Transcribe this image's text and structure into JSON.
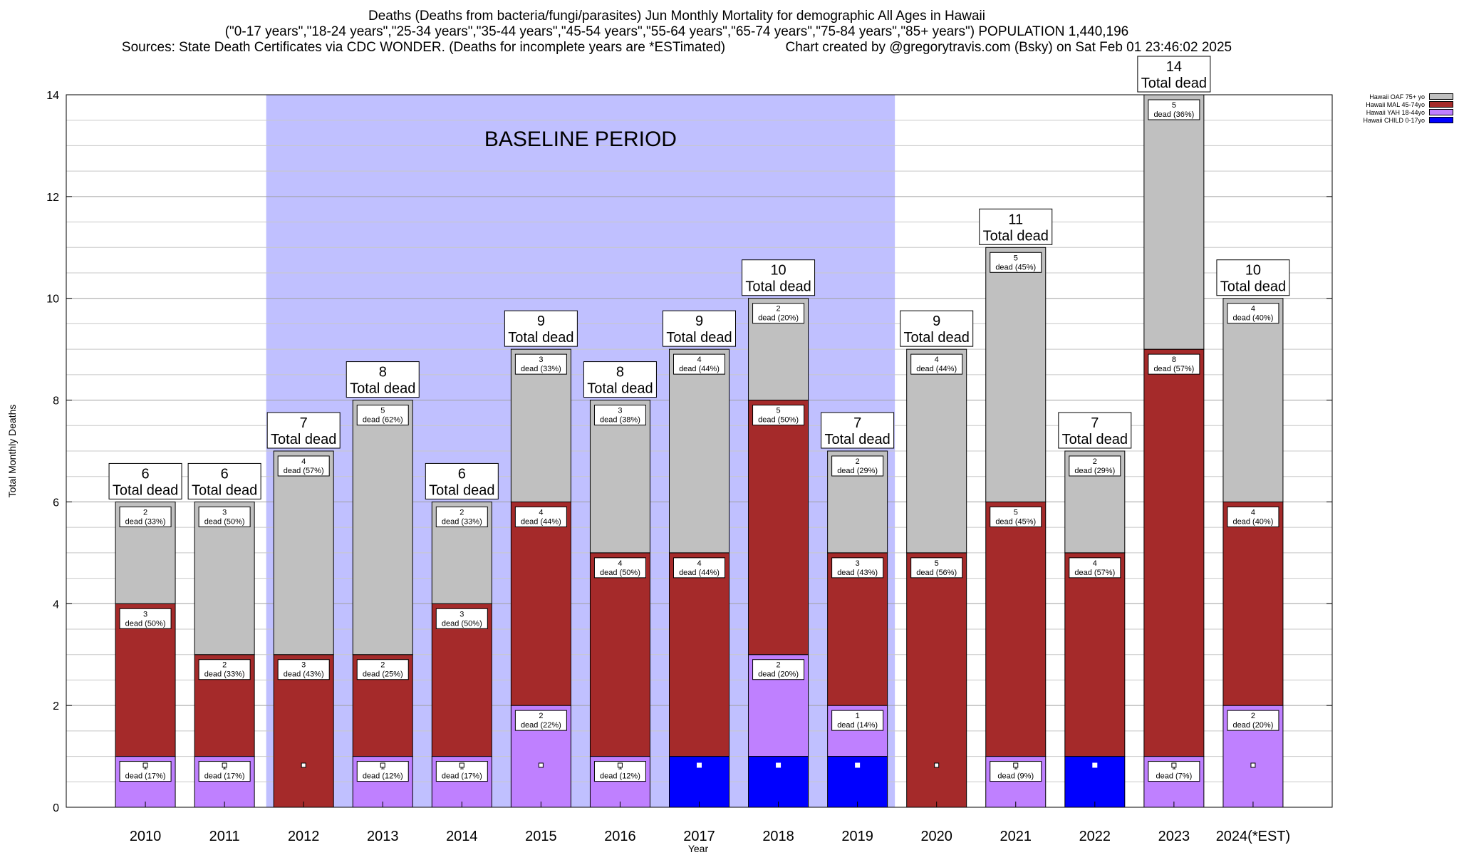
{
  "titles": {
    "line1": "Deaths (Deaths from bacteria/fungi/parasites) Jun Monthly Mortality for demographic All Ages in Hawaii",
    "line2": "(\"0-17 years\",\"18-24 years\",\"25-34 years\",\"35-44 years\",\"45-54 years\",\"55-64 years\",\"65-74 years\",\"75-84 years\",\"85+ years\") POPULATION 1,440,196",
    "line3": "Sources: State Death Certificates via CDC WONDER. (Deaths for incomplete years are *ESTimated)                Chart created by @gregorytravis.com (Bsky) on Sat Feb 01 23:46:02 2025"
  },
  "colors": {
    "child": "#0000ff",
    "yah": "#bf80ff",
    "mal": "#a52a2a",
    "oaf": "#c0c0c0",
    "baseline": "#c0c0ff"
  },
  "chart_data": {
    "type": "bar",
    "stacked": true,
    "categories": [
      "2010",
      "2011",
      "2012",
      "2013",
      "2014",
      "2015",
      "2016",
      "2017",
      "2018",
      "2019",
      "2020",
      "2021",
      "2022",
      "2023",
      "2024(*EST)"
    ],
    "series": [
      {
        "name": "Hawaii CHILD 0-17yo",
        "key": "child",
        "values": [
          0,
          0,
          0,
          0,
          0,
          0,
          0,
          1,
          1,
          1,
          0,
          0,
          1,
          0,
          0
        ],
        "labels": [
          "",
          "",
          "",
          "",
          "",
          "",
          "",
          "",
          "",
          "",
          "",
          "",
          "",
          "",
          ""
        ]
      },
      {
        "name": "Hawaii YAH 18-44yo",
        "key": "yah",
        "values": [
          1,
          1,
          0,
          1,
          1,
          2,
          1,
          0,
          2,
          1,
          0,
          1,
          0,
          1,
          2
        ],
        "labels": [
          "1\ndead (17%)",
          "1\ndead (17%)",
          "",
          "1\ndead (12%)",
          "1\ndead (17%)",
          "2\ndead (22%)",
          "1\ndead (12%)",
          "",
          "2\ndead (20%)",
          "1\ndead (14%)",
          "",
          "1\ndead (9%)",
          "",
          "1\ndead (7%)",
          "2\ndead (20%)"
        ]
      },
      {
        "name": "Hawaii MAL 45-74yo",
        "key": "mal",
        "values": [
          3,
          2,
          3,
          2,
          3,
          4,
          4,
          4,
          5,
          3,
          5,
          5,
          4,
          8,
          4
        ],
        "labels": [
          "3\ndead (50%)",
          "2\ndead (33%)",
          "3\ndead (43%)",
          "2\ndead (25%)",
          "3\ndead (50%)",
          "4\ndead (44%)",
          "4\ndead (50%)",
          "4\ndead (44%)",
          "5\ndead (50%)",
          "3\ndead (43%)",
          "5\ndead (56%)",
          "5\ndead (45%)",
          "4\ndead (57%)",
          "8\ndead (57%)",
          "4\ndead (40%)"
        ]
      },
      {
        "name": "Hawaii OAF 75+ yo",
        "key": "oaf",
        "values": [
          2,
          3,
          4,
          5,
          2,
          3,
          3,
          4,
          2,
          2,
          4,
          5,
          2,
          5,
          4
        ],
        "labels": [
          "2\ndead (33%)",
          "3\ndead (50%)",
          "4\ndead (57%)",
          "5\ndead (62%)",
          "2\ndead (33%)",
          "3\ndead (33%)",
          "3\ndead (38%)",
          "4\ndead (44%)",
          "2\ndead (20%)",
          "2\ndead (29%)",
          "4\ndead (44%)",
          "5\ndead (45%)",
          "2\ndead (29%)",
          "5\ndead (36%)",
          "4\ndead (40%)"
        ]
      }
    ],
    "totals": [
      6,
      6,
      7,
      8,
      6,
      9,
      8,
      9,
      10,
      7,
      9,
      11,
      7,
      14,
      10
    ],
    "total_label": "Total dead",
    "xlabel": "Year",
    "ylabel": "Total Monthly Deaths",
    "ylim": [
      0,
      14
    ],
    "yticks": [
      0,
      2,
      4,
      6,
      8,
      10,
      12,
      14
    ],
    "minor_step": 0.5,
    "grid": true,
    "baseline_period": {
      "label": "BASELINE PERIOD",
      "from": "2012",
      "to": "2019"
    },
    "legend_position": "top-right",
    "legend_order": [
      "oaf",
      "mal",
      "yah",
      "child"
    ]
  }
}
